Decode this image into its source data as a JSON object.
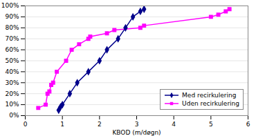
{
  "chart_data": {
    "type": "line",
    "xlabel": "KBOD (m/døgn)",
    "series": [
      {
        "name": "Med recirkulering",
        "color": "#00008B",
        "marker": "diamond",
        "x": [
          0.9,
          0.95,
          1.0,
          1.2,
          1.4,
          1.7,
          2.0,
          2.2,
          2.5,
          2.7,
          2.9,
          3.1,
          3.2
        ],
        "values": [
          0.05,
          0.08,
          0.1,
          0.2,
          0.3,
          0.4,
          0.5,
          0.6,
          0.7,
          0.8,
          0.9,
          0.95,
          0.97
        ]
      },
      {
        "name": "Uden recirkulering",
        "color": "#FF00FF",
        "marker": "square",
        "x": [
          0.35,
          0.55,
          0.6,
          0.65,
          0.7,
          0.75,
          0.85,
          1.1,
          1.25,
          1.45,
          1.7,
          1.75,
          2.2,
          2.4,
          3.1,
          3.2,
          5.0,
          5.2,
          5.4,
          5.5
        ],
        "values": [
          0.07,
          0.1,
          0.2,
          0.22,
          0.28,
          0.3,
          0.4,
          0.5,
          0.6,
          0.65,
          0.7,
          0.72,
          0.75,
          0.78,
          0.8,
          0.82,
          0.9,
          0.92,
          0.95,
          0.97
        ]
      }
    ],
    "xlim": [
      0,
      6
    ],
    "ylim": [
      0,
      1.0
    ],
    "xticks": [
      0,
      1,
      2,
      3,
      4,
      5,
      6
    ],
    "yticks": [
      {
        "value": 0.0,
        "label": "0%"
      },
      {
        "value": 0.1,
        "label": "10%"
      },
      {
        "value": 0.2,
        "label": "20%"
      },
      {
        "value": 0.3,
        "label": "30%"
      },
      {
        "value": 0.4,
        "label": "40%"
      },
      {
        "value": 0.5,
        "label": "50%"
      },
      {
        "value": 0.6,
        "label": "60%"
      },
      {
        "value": 0.7,
        "label": "70%"
      },
      {
        "value": 0.8,
        "label": "80%"
      },
      {
        "value": 0.9,
        "label": "90%"
      },
      {
        "value": 1.0,
        "label": "100%"
      }
    ],
    "grid": "y",
    "legend": "lower right"
  }
}
